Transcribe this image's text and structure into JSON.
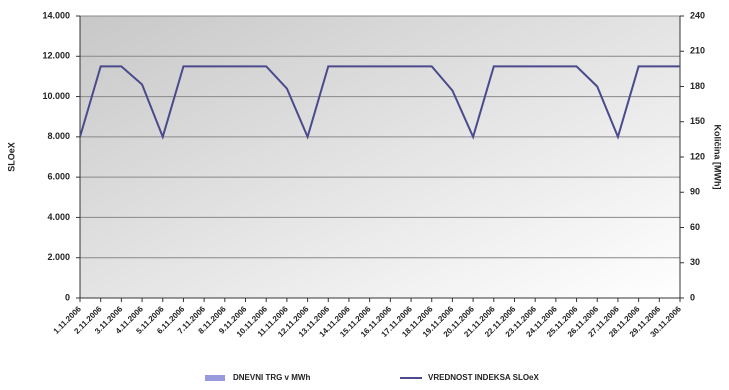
{
  "chart_data": {
    "type": "line",
    "y_label": "SLOeX",
    "y2_label": "Količina [MWh]",
    "categories": [
      "1.11.2006",
      "2.11.2006",
      "3.11.2006",
      "4.11.2006",
      "5.11.2006",
      "6.11.2006",
      "7.11.2006",
      "8.11.2006",
      "9.11.2006",
      "10.11.2006",
      "11.11.2006",
      "12.11.2006",
      "13.11.2006",
      "14.11.2006",
      "15.11.2006",
      "16.11.2006",
      "17.11.2006",
      "18.11.2006",
      "19.11.2006",
      "20.11.2006",
      "21.11.2006",
      "22.11.2006",
      "23.11.2006",
      "24.11.2006",
      "25.11.2006",
      "26.11.2006",
      "27.11.2006",
      "28.11.2006",
      "29.11.2006",
      "30.11.2006"
    ],
    "series": [
      {
        "name": "DNEVNI TRG v MWh",
        "color": "#9999dd",
        "axis": "y2",
        "kind": "bar",
        "values": [
          null,
          null,
          null,
          null,
          null,
          null,
          null,
          null,
          null,
          null,
          null,
          null,
          null,
          null,
          null,
          null,
          null,
          null,
          null,
          null,
          null,
          null,
          null,
          null,
          null,
          null,
          null,
          null,
          null,
          null
        ]
      },
      {
        "name": "VREDNOST INDEKSA SLOeX",
        "color": "#4a4a8c",
        "kind": "line",
        "values": [
          8000,
          11500,
          11500,
          10600,
          8000,
          11500,
          11500,
          11500,
          11500,
          11500,
          10400,
          8000,
          11500,
          11500,
          11500,
          11500,
          11500,
          11500,
          10300,
          8000,
          11500,
          11500,
          11500,
          11500,
          11500,
          10500,
          8000,
          11500,
          11500,
          11500
        ]
      }
    ],
    "ylim": [
      0,
      14000
    ],
    "yticks": [
      0,
      {
        "value": 2000,
        "label": "2.000"
      },
      {
        "value": 4000,
        "label": "4.000"
      },
      {
        "value": 6000,
        "label": "6.000"
      },
      {
        "value": 8000,
        "label": "8.000"
      },
      {
        "value": 10000,
        "label": "10.000"
      },
      {
        "value": 12000,
        "label": "12.000"
      },
      {
        "value": 14000,
        "label": "14.000"
      }
    ],
    "y2lim": [
      0,
      240
    ],
    "y2ticks": [
      0,
      30,
      60,
      90,
      120,
      150,
      180,
      210,
      240
    ],
    "grid": true
  }
}
